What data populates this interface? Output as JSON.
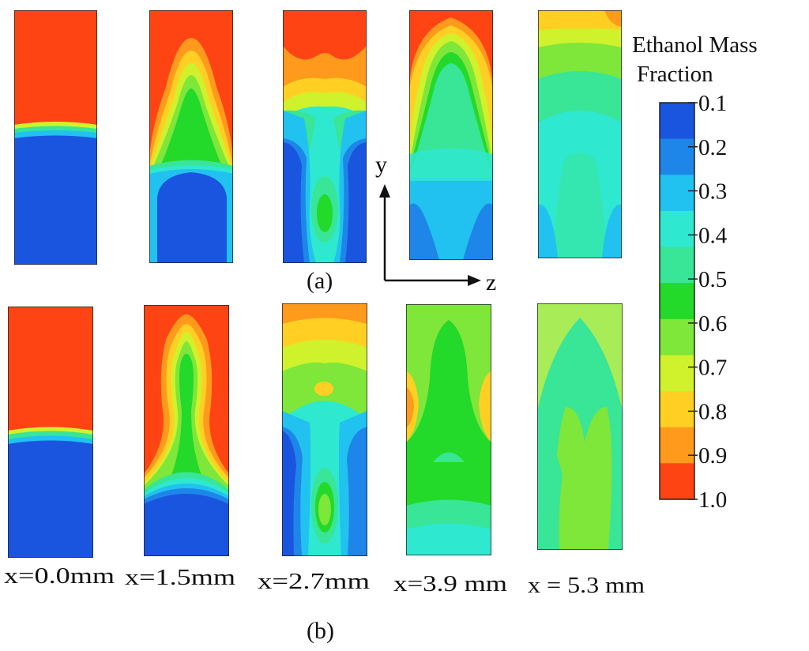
{
  "colorbar": {
    "title_line1": "Ethanol Mass",
    "title_line2": "Fraction",
    "ticks": [
      "0.1",
      "0.2",
      "0.3",
      "0.4",
      "0.5",
      "0.6",
      "0.7",
      "0.8",
      "0.9",
      "1.0"
    ],
    "colors": [
      "#1a55e0",
      "#1d86e8",
      "#21c1f0",
      "#2fe8d0",
      "#39e596",
      "#23d92a",
      "#7fe63a",
      "#cff22c",
      "#ffd023",
      "#ff9a1c",
      "#ff4414"
    ]
  },
  "axes": {
    "y_label": "y",
    "z_label": "z"
  },
  "row_labels": {
    "a": "(a)",
    "b": "(b)"
  },
  "positions": [
    "x=0.0mm",
    "x=1.5mm",
    "x=2.7mm",
    "x=3.9 mm",
    "x = 5.3 mm"
  ],
  "panels": {
    "a": [
      {
        "position": "x=0.0mm"
      },
      {
        "position": "x=1.5mm"
      },
      {
        "position": "x=2.7mm"
      },
      {
        "position": "x=3.9 mm"
      },
      {
        "position": "x = 5.3 mm"
      }
    ],
    "b": [
      {
        "position": "x=0.0mm"
      },
      {
        "position": "x=1.5mm"
      },
      {
        "position": "x=2.7mm"
      },
      {
        "position": "x=3.9 mm"
      },
      {
        "position": "x = 5.3 mm"
      }
    ]
  }
}
